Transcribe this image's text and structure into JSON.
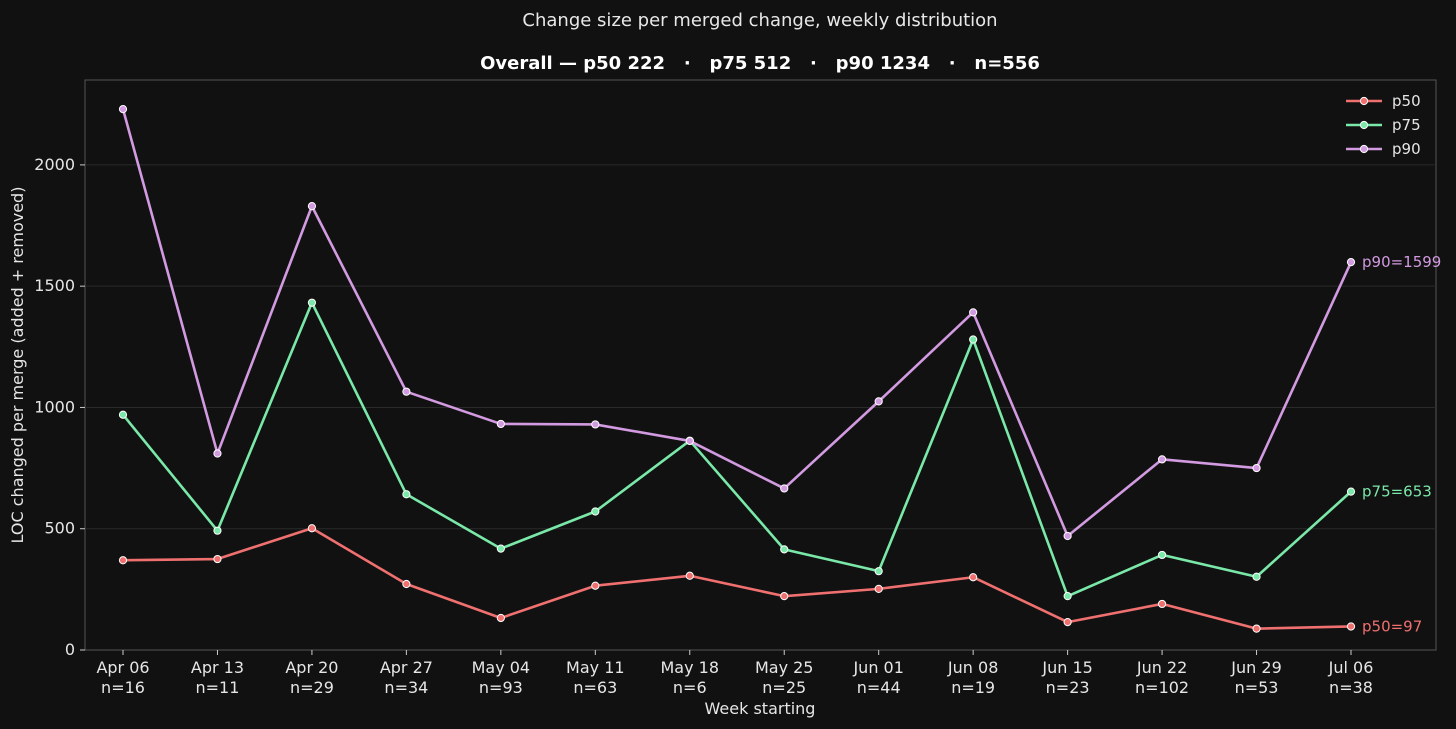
{
  "chart_data": {
    "type": "line",
    "title": "Change size per merged change, weekly distribution",
    "subtitle": "Overall — p50 222   ·   p75 512   ·   p90 1234   ·   n=556",
    "xlabel": "Week starting",
    "ylabel": "LOC changed per merge (added + removed)",
    "ylim": [
      0,
      2350
    ],
    "yticks": [
      0,
      500,
      1000,
      1500,
      2000
    ],
    "grid": "horizontal",
    "legend_position": "top-right",
    "categories": [
      "Apr 06",
      "Apr 13",
      "Apr 20",
      "Apr 27",
      "May 04",
      "May 11",
      "May 18",
      "May 25",
      "Jun 01",
      "Jun 08",
      "Jun 15",
      "Jun 22",
      "Jun 29",
      "Jul 06"
    ],
    "counts": [
      "n=16",
      "n=11",
      "n=29",
      "n=34",
      "n=93",
      "n=63",
      "n=6",
      "n=25",
      "n=44",
      "n=19",
      "n=23",
      "n=102",
      "n=53",
      "n=38"
    ],
    "series": [
      {
        "name": "p50",
        "color": "#f07070",
        "values": [
          370,
          375,
          502,
          272,
          132,
          265,
          306,
          222,
          252,
          300,
          115,
          190,
          88,
          97
        ],
        "end_label": "p50=97"
      },
      {
        "name": "p75",
        "color": "#7ae8a8",
        "values": [
          970,
          492,
          1432,
          642,
          418,
          571,
          863,
          415,
          325,
          1280,
          222,
          392,
          302,
          653
        ],
        "end_label": "p75=653"
      },
      {
        "name": "p90",
        "color": "#d29ae0",
        "values": [
          2230,
          810,
          1830,
          1065,
          932,
          930,
          862,
          666,
          1025,
          1392,
          470,
          786,
          750,
          1599
        ],
        "end_label": "p90=1599"
      }
    ]
  }
}
